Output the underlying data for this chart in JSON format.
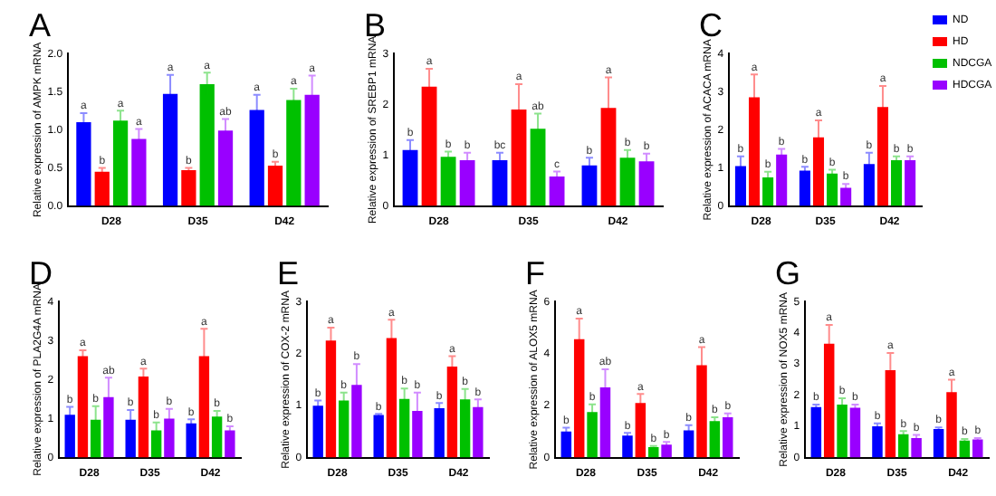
{
  "chart_data": [
    {
      "type": "bar",
      "title": "A",
      "ylabel": "Relative expression of AMPK mRNA",
      "categories": [
        "D28",
        "D35",
        "D42"
      ],
      "ylim": [
        0,
        2
      ],
      "yticks": [
        {
          "value": 0,
          "label": "0.0"
        },
        {
          "value": 0.5,
          "label": "0.5"
        },
        {
          "value": 1,
          "label": "1.0"
        },
        {
          "value": 1.5,
          "label": "1.5"
        },
        {
          "value": 2,
          "label": "2.0"
        }
      ],
      "legend": false,
      "series": [
        {
          "color": "#0000ff",
          "values": [
            1.1,
            1.47,
            1.26
          ],
          "errors": [
            0.12,
            0.25,
            0.2
          ],
          "value_labels": [
            "a",
            "a",
            "a"
          ]
        },
        {
          "color": "#ff0000",
          "values": [
            0.45,
            0.47,
            0.53
          ],
          "errors": [
            0.05,
            0.03,
            0.05
          ],
          "value_labels": [
            "b",
            "b",
            "b"
          ]
        },
        {
          "color": "#00c000",
          "values": [
            1.12,
            1.6,
            1.39
          ],
          "errors": [
            0.13,
            0.15,
            0.15
          ],
          "value_labels": [
            "a",
            "a",
            "a"
          ]
        },
        {
          "color": "#9900ff",
          "values": [
            0.88,
            0.99,
            1.46
          ],
          "errors": [
            0.13,
            0.15,
            0.25
          ],
          "value_labels": [
            "a",
            "ab",
            "a"
          ]
        }
      ]
    },
    {
      "type": "bar",
      "title": "B",
      "ylabel": "Relative expression of SREBP1 mRNA",
      "categories": [
        "D28",
        "D35",
        "D42"
      ],
      "ylim": [
        0,
        3
      ],
      "yticks": [
        0,
        1,
        2,
        3
      ],
      "legend": false,
      "series": [
        {
          "color": "#0000ff",
          "values": [
            1.1,
            0.9,
            0.8
          ],
          "errors": [
            0.2,
            0.15,
            0.15
          ],
          "value_labels": [
            "b",
            "bc",
            "b"
          ]
        },
        {
          "color": "#ff0000",
          "values": [
            2.35,
            1.9,
            1.93
          ],
          "errors": [
            0.35,
            0.5,
            0.6
          ],
          "value_labels": [
            "a",
            "a",
            "a"
          ]
        },
        {
          "color": "#00c000",
          "values": [
            0.97,
            1.52,
            0.95
          ],
          "errors": [
            0.1,
            0.3,
            0.15
          ],
          "value_labels": [
            "b",
            "ab",
            "b"
          ]
        },
        {
          "color": "#9900ff",
          "values": [
            0.9,
            0.58,
            0.88
          ],
          "errors": [
            0.15,
            0.1,
            0.15
          ],
          "value_labels": [
            "b",
            "c",
            "b"
          ]
        }
      ]
    },
    {
      "type": "bar",
      "title": "C",
      "ylabel": "Relative expression of ACACA mRNA",
      "categories": [
        "D28",
        "D35",
        "D42"
      ],
      "ylim": [
        0,
        4
      ],
      "yticks": [
        0,
        1,
        2,
        3,
        4
      ],
      "legend": "right",
      "series": [
        {
          "name": "ND",
          "color": "#0000ff",
          "values": [
            1.05,
            0.93,
            1.1
          ],
          "errors": [
            0.25,
            0.1,
            0.3
          ],
          "value_labels": [
            "b",
            "b",
            "b"
          ]
        },
        {
          "name": "HD",
          "color": "#ff0000",
          "values": [
            2.85,
            1.8,
            2.6
          ],
          "errors": [
            0.6,
            0.45,
            0.55
          ],
          "value_labels": [
            "a",
            "a",
            "a"
          ]
        },
        {
          "name": "NDCGA",
          "color": "#00c000",
          "values": [
            0.75,
            0.85,
            1.2
          ],
          "errors": [
            0.15,
            0.1,
            0.1
          ],
          "value_labels": [
            "b",
            "b",
            "b"
          ]
        },
        {
          "name": "HDCGA",
          "color": "#9900ff",
          "values": [
            1.35,
            0.48,
            1.2
          ],
          "errors": [
            0.15,
            0.1,
            0.1
          ],
          "value_labels": [
            "b",
            "b",
            "b"
          ]
        }
      ]
    },
    {
      "type": "bar",
      "title": "D",
      "ylabel": "Relative expression of PLA2G4A mRNA",
      "categories": [
        "D28",
        "D35",
        "D42"
      ],
      "ylim": [
        0,
        4
      ],
      "yticks": [
        0,
        1,
        2,
        3,
        4
      ],
      "legend": false,
      "series": [
        {
          "color": "#0000ff",
          "values": [
            1.1,
            0.97,
            0.88
          ],
          "errors": [
            0.2,
            0.25,
            0.1
          ],
          "value_labels": [
            "b",
            "b",
            "b"
          ]
        },
        {
          "color": "#ff0000",
          "values": [
            2.6,
            2.08,
            2.6
          ],
          "errors": [
            0.15,
            0.2,
            0.7
          ],
          "value_labels": [
            "a",
            "a",
            "a"
          ]
        },
        {
          "color": "#00c000",
          "values": [
            0.97,
            0.7,
            1.05
          ],
          "errors": [
            0.35,
            0.2,
            0.15
          ],
          "value_labels": [
            "b",
            "b",
            "b"
          ]
        },
        {
          "color": "#9900ff",
          "values": [
            1.55,
            1.0,
            0.7
          ],
          "errors": [
            0.5,
            0.25,
            0.1
          ],
          "value_labels": [
            "ab",
            "b",
            "b"
          ]
        }
      ]
    },
    {
      "type": "bar",
      "title": "E",
      "ylabel": "Relative expression of COX-2 mRNA",
      "categories": [
        "D28",
        "D35",
        "D42"
      ],
      "ylim": [
        0,
        3
      ],
      "yticks": [
        0,
        1,
        2,
        3
      ],
      "legend": false,
      "series": [
        {
          "color": "#0000ff",
          "values": [
            1.0,
            0.82,
            0.95
          ],
          "errors": [
            0.1,
            0.02,
            0.1
          ],
          "value_labels": [
            "b",
            "b",
            "b"
          ]
        },
        {
          "color": "#ff0000",
          "values": [
            2.25,
            2.3,
            1.75
          ],
          "errors": [
            0.25,
            0.35,
            0.2
          ],
          "value_labels": [
            "a",
            "a",
            "a"
          ]
        },
        {
          "color": "#00c000",
          "values": [
            1.1,
            1.13,
            1.12
          ],
          "errors": [
            0.15,
            0.2,
            0.2
          ],
          "value_labels": [
            "b",
            "b",
            "b"
          ]
        },
        {
          "color": "#9900ff",
          "values": [
            1.4,
            0.9,
            0.97
          ],
          "errors": [
            0.4,
            0.35,
            0.15
          ],
          "value_labels": [
            "b",
            "b",
            "b"
          ]
        }
      ]
    },
    {
      "type": "bar",
      "title": "F",
      "ylabel": "Relative expression of ALOX5 mRNA",
      "categories": [
        "D28",
        "D35",
        "D42"
      ],
      "ylim": [
        0,
        6
      ],
      "yticks": [
        0,
        2,
        4,
        6
      ],
      "legend": false,
      "series": [
        {
          "color": "#0000ff",
          "values": [
            1.0,
            0.85,
            1.05
          ],
          "errors": [
            0.15,
            0.1,
            0.2
          ],
          "value_labels": [
            "b",
            "b",
            "b"
          ]
        },
        {
          "color": "#ff0000",
          "values": [
            4.55,
            2.1,
            3.55
          ],
          "errors": [
            0.8,
            0.35,
            0.7
          ],
          "value_labels": [
            "a",
            "a",
            "a"
          ]
        },
        {
          "color": "#00c000",
          "values": [
            1.75,
            0.4,
            1.4
          ],
          "errors": [
            0.3,
            0.05,
            0.15
          ],
          "value_labels": [
            "b",
            "b",
            "b"
          ]
        },
        {
          "color": "#9900ff",
          "values": [
            2.7,
            0.5,
            1.55
          ],
          "errors": [
            0.7,
            0.1,
            0.15
          ],
          "value_labels": [
            "ab",
            "b",
            "b"
          ]
        }
      ]
    },
    {
      "type": "bar",
      "title": "G",
      "ylabel": "Relative expression of NOX5 mRNA",
      "categories": [
        "D28",
        "D35",
        "D42"
      ],
      "ylim": [
        0,
        5
      ],
      "yticks": [
        0,
        1,
        2,
        3,
        4,
        5
      ],
      "legend": false,
      "series": [
        {
          "color": "#0000ff",
          "values": [
            1.62,
            1.0,
            0.92
          ],
          "errors": [
            0.08,
            0.1,
            0.05
          ],
          "value_labels": [
            "b",
            "b",
            "b"
          ]
        },
        {
          "color": "#ff0000",
          "values": [
            3.65,
            2.8,
            2.1
          ],
          "errors": [
            0.6,
            0.55,
            0.4
          ],
          "value_labels": [
            "a",
            "a",
            "a"
          ]
        },
        {
          "color": "#00c000",
          "values": [
            1.7,
            0.75,
            0.55
          ],
          "errors": [
            0.2,
            0.1,
            0.05
          ],
          "value_labels": [
            "b",
            "b",
            "b"
          ]
        },
        {
          "color": "#9900ff",
          "values": [
            1.6,
            0.63,
            0.58
          ],
          "errors": [
            0.1,
            0.1,
            0.05
          ],
          "value_labels": [
            "b",
            "b",
            "b"
          ]
        }
      ]
    }
  ]
}
